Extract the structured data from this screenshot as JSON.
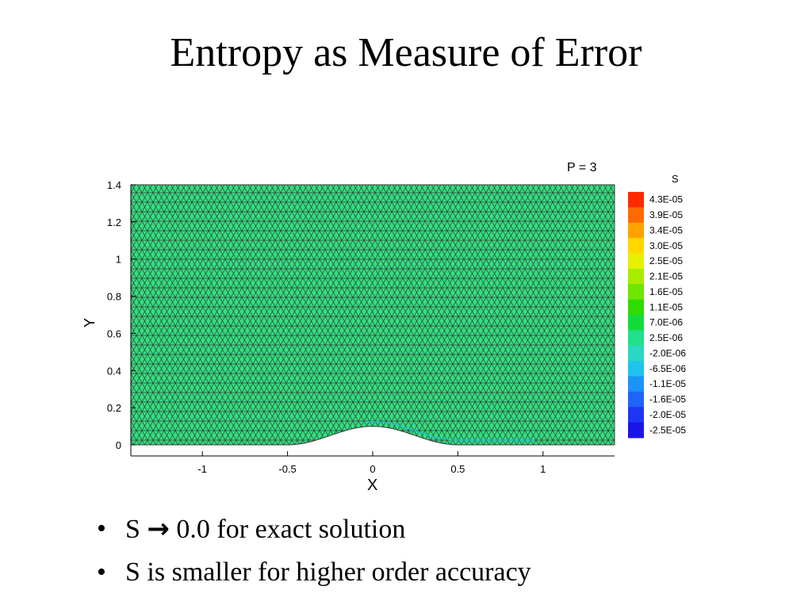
{
  "slide": {
    "title": "Entropy as Measure of Error"
  },
  "figure": {
    "plot_label": "P = 3",
    "colors": {
      "mesh_fill": "#30e07e",
      "mesh_line": "#3a3a3a",
      "axis": "#000000"
    },
    "colorbar": {
      "title": "S",
      "labels": [
        "4.3E-05",
        "3.9E-05",
        "3.4E-05",
        "3.0E-05",
        "2.5E-05",
        "2.1E-05",
        "1.6E-05",
        "1.1E-05",
        "7.0E-06",
        "2.5E-06",
        "-2.0E-06",
        "-6.5E-06",
        "-1.1E-05",
        "-1.6E-05",
        "-2.0E-05",
        "-2.5E-05"
      ],
      "colors": [
        "#ff2a00",
        "#ff6a00",
        "#ffa200",
        "#ffd800",
        "#e6f000",
        "#a8ec00",
        "#6ee600",
        "#30dc00",
        "#12dc3a",
        "#20e08c",
        "#2ad8c4",
        "#1ec4ee",
        "#1a94f8",
        "#1e64f8",
        "#1e36f2",
        "#1a14e8"
      ]
    },
    "chart_data": {
      "type": "heatmap",
      "xlabel": "X",
      "ylabel": "Y",
      "xlim": [
        -1.42,
        1.42
      ],
      "ylim": [
        0,
        1.4
      ],
      "x_ticks": [
        -1,
        -0.5,
        0,
        0.5,
        1
      ],
      "x_tick_labels": [
        "-1",
        "-0.5",
        "0",
        "0.5",
        "1"
      ],
      "y_ticks": [
        0,
        0.2,
        0.4,
        0.6,
        0.8,
        1,
        1.2,
        1.4
      ],
      "y_tick_labels": [
        "0",
        "0.2",
        "0.4",
        "0.6",
        "0.8",
        "1",
        "1.2",
        "1.4"
      ],
      "bump_peak_y": 0.1,
      "bump_x_range": [
        -0.5,
        0.5
      ],
      "grid": false
    }
  },
  "bullets": [
    {
      "before": "S ",
      "arrow": "→",
      "after": " 0.0 for exact solution"
    },
    {
      "text": "S is smaller for higher order accuracy"
    }
  ]
}
